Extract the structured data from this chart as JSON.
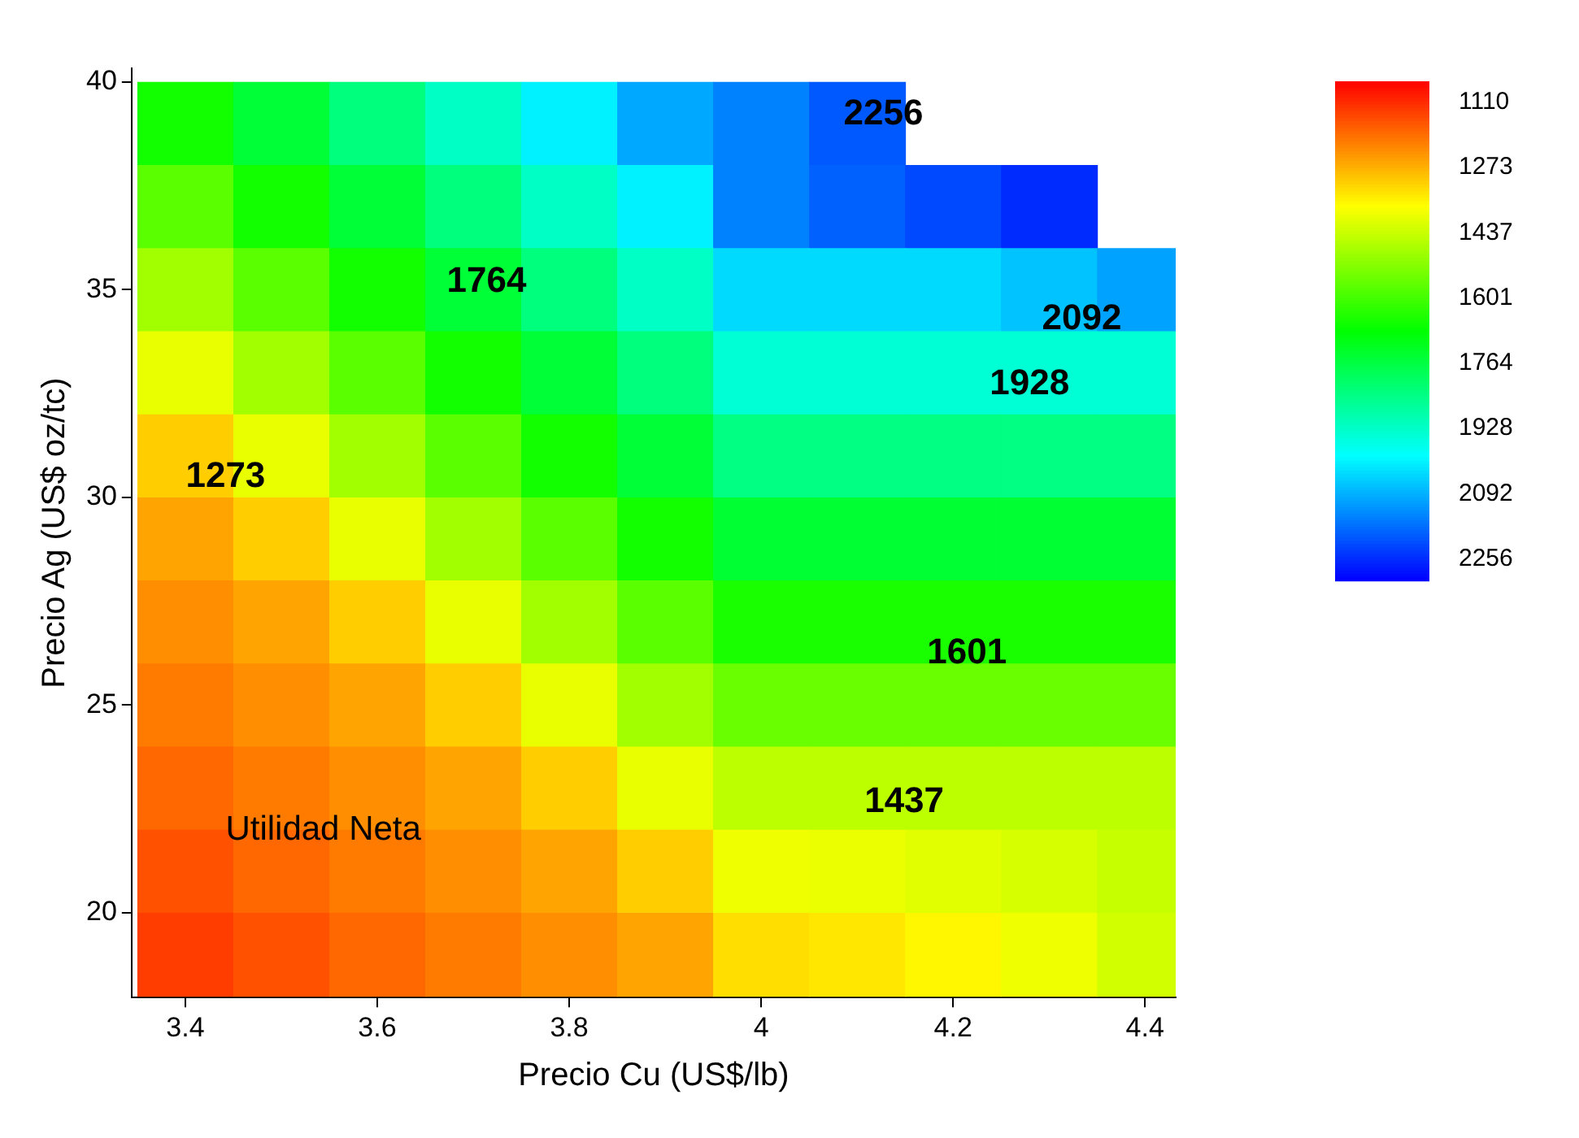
{
  "chart_data": {
    "type": "heatmap",
    "xlabel": "Precio Cu (US$/lb)",
    "ylabel": "Precio Ag (US$ oz/tc)",
    "x": [
      3.4,
      3.5,
      3.6,
      3.7,
      3.8,
      3.9,
      4.0,
      4.1,
      4.2,
      4.3,
      4.4
    ],
    "y": [
      39,
      37,
      35,
      33,
      31,
      29,
      27,
      25,
      23,
      21,
      19
    ],
    "cells": [
      [
        1661,
        1749,
        1837,
        1925,
        2013,
        2101,
        2150,
        2200,
        null,
        null,
        null
      ],
      [
        1573,
        1661,
        1749,
        1837,
        1925,
        2013,
        2150,
        2190,
        2220,
        2256,
        null
      ],
      [
        1485,
        1573,
        1661,
        1749,
        1837,
        1925,
        2042,
        2042,
        2042,
        2070,
        2110
      ],
      [
        1397,
        1485,
        1573,
        1661,
        1749,
        1837,
        1943,
        1943,
        1943,
        1943,
        1943
      ],
      [
        1309,
        1397,
        1485,
        1573,
        1661,
        1749,
        1843,
        1843,
        1843,
        1843,
        1843
      ],
      [
        1258,
        1309,
        1397,
        1485,
        1573,
        1661,
        1745,
        1745,
        1745,
        1745,
        1745
      ],
      [
        1233,
        1258,
        1309,
        1397,
        1485,
        1573,
        1652,
        1652,
        1652,
        1652,
        1652
      ],
      [
        1208,
        1233,
        1258,
        1309,
        1397,
        1485,
        1554,
        1554,
        1554,
        1554,
        1554
      ],
      [
        1183,
        1208,
        1233,
        1258,
        1309,
        1397,
        1452,
        1452,
        1452,
        1452,
        1452
      ],
      [
        1157,
        1183,
        1208,
        1233,
        1258,
        1309,
        1390,
        1395,
        1405,
        1420,
        1440
      ],
      [
        1132,
        1157,
        1183,
        1208,
        1233,
        1258,
        1330,
        1340,
        1360,
        1390,
        1425
      ]
    ],
    "xlim": [
      3.344,
      4.432
    ],
    "xticks": [
      3.4,
      3.6,
      3.8,
      4.0,
      4.2,
      4.4
    ],
    "ylim": [
      17.96,
      40.33
    ],
    "yticks": [
      20,
      25,
      30,
      35,
      40
    ],
    "clim": [
      1057,
      2309
    ],
    "cticks": [
      1110,
      1273,
      1437,
      1601,
      1764,
      1928,
      2092,
      2256
    ],
    "annotations": [
      "2256",
      "2092",
      "1928",
      "1764",
      "1601",
      "1437",
      "1273",
      "Utilidad Neta"
    ]
  }
}
